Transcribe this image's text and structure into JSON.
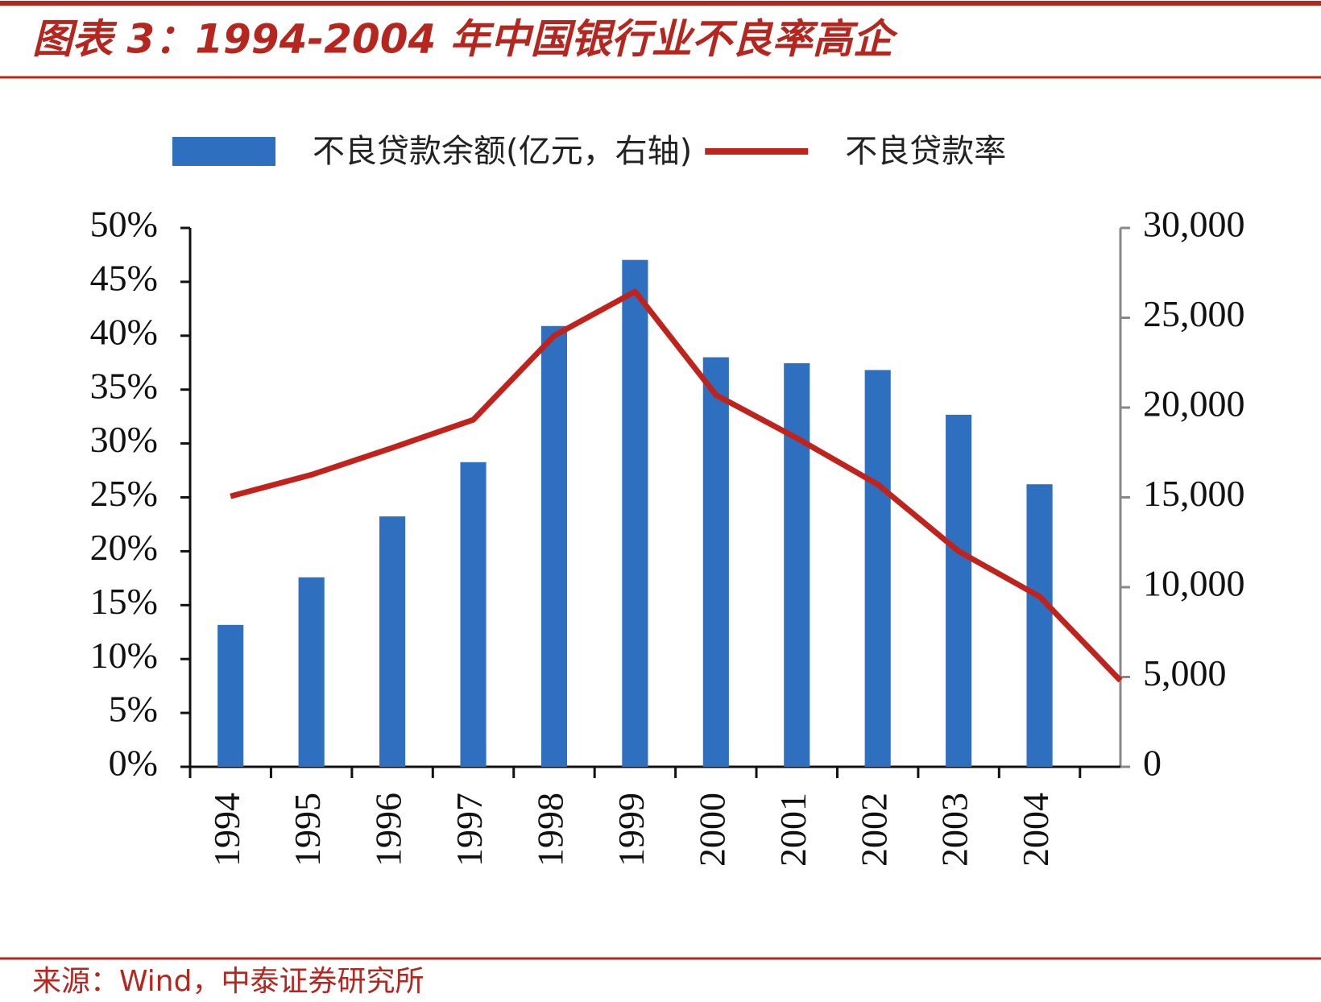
{
  "chart_data": {
    "type": "bar_line",
    "title": "图表 3：1994-2004 年中国银行业不良率高企",
    "source": "来源：Wind，中泰证券研究所",
    "categories": [
      "1994",
      "1995",
      "1996",
      "1997",
      "1998",
      "1999",
      "2000",
      "2001",
      "2002",
      "2003",
      "2004",
      null
    ],
    "series": [
      {
        "name": "不良贷款余额(亿元，右轴)",
        "type": "bar",
        "axis": "y2",
        "color": "#2f6fbf",
        "values": [
          7900,
          10550,
          13940,
          16960,
          24540,
          28220,
          22800,
          22470,
          22090,
          19600,
          15730,
          null
        ]
      },
      {
        "name": "不良贷款率",
        "type": "line",
        "axis": "y",
        "color": "#c0221c",
        "values": [
          25.1,
          27.1,
          29.6,
          32.2,
          40.0,
          44.1,
          34.5,
          30.5,
          26.2,
          20.0,
          15.8,
          8.0
        ]
      }
    ],
    "ylim": [
      0,
      50
    ],
    "yticks": [
      {
        "value": 0,
        "label": "0%"
      },
      {
        "value": 5,
        "label": "5%"
      },
      {
        "value": 10,
        "label": "10%"
      },
      {
        "value": 15,
        "label": "15%"
      },
      {
        "value": 20,
        "label": "20%"
      },
      {
        "value": 25,
        "label": "25%"
      },
      {
        "value": 30,
        "label": "30%"
      },
      {
        "value": 35,
        "label": "35%"
      },
      {
        "value": 40,
        "label": "40%"
      },
      {
        "value": 45,
        "label": "45%"
      },
      {
        "value": 50,
        "label": "50%"
      }
    ],
    "y2lim": [
      0,
      30000
    ],
    "y2ticks": [
      0,
      {
        "value": 5000,
        "label": "5,000"
      },
      {
        "value": 10000,
        "label": "10,000"
      },
      {
        "value": 15000,
        "label": "15,000"
      },
      {
        "value": 20000,
        "label": "20,000"
      },
      {
        "value": 25000,
        "label": "25,000"
      },
      {
        "value": 30000,
        "label": "30,000"
      }
    ],
    "legend": "top"
  }
}
